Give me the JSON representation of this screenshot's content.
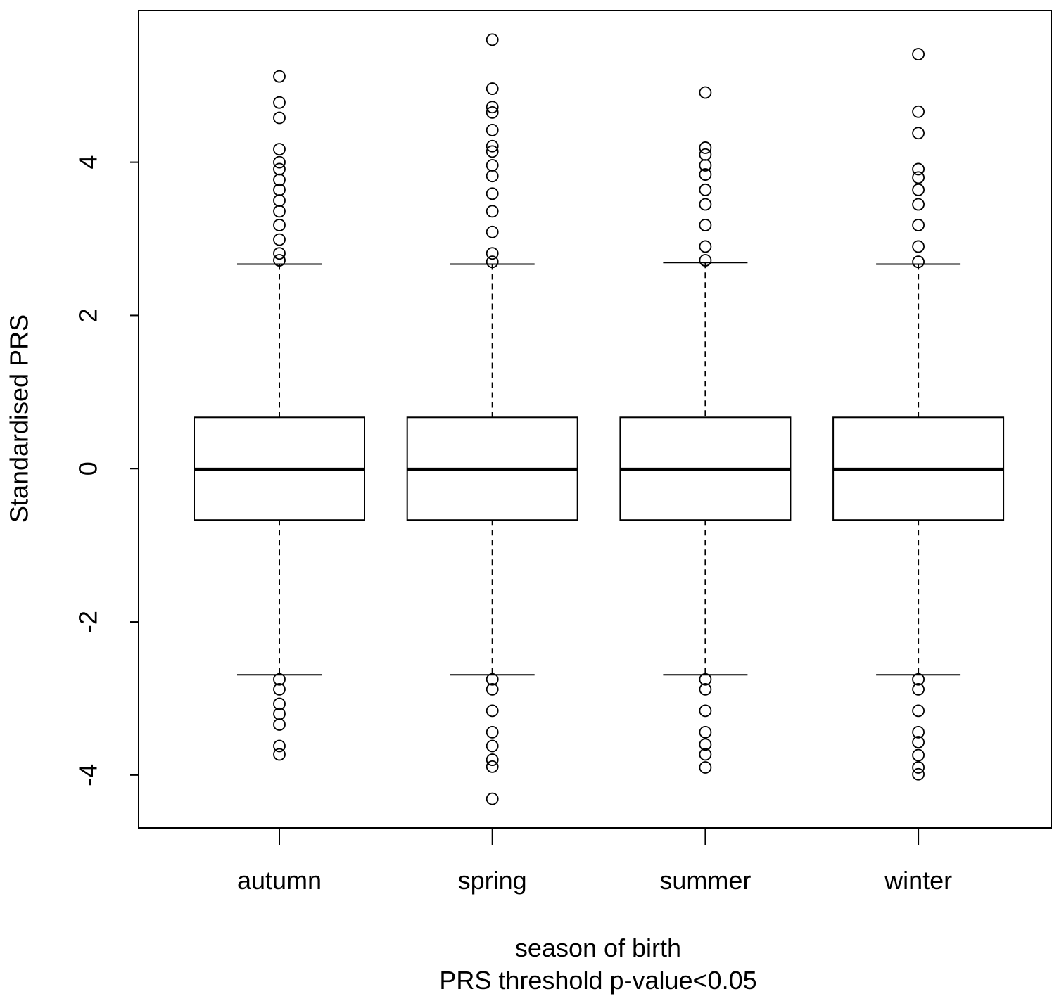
{
  "chart_data": {
    "type": "box",
    "ylabel": "Standardised PRS",
    "xlabel": "season of birth",
    "subtitle": "PRS threshold p-value<0.05",
    "categories": [
      "autumn",
      "spring",
      "summer",
      "winter"
    ],
    "boxes": [
      {
        "whislo": -2.69,
        "q1": -0.67,
        "med": -0.01,
        "q3": 0.67,
        "whishi": 2.67,
        "fliers": [
          5.12,
          4.78,
          4.58,
          4.17,
          4.0,
          3.91,
          3.77,
          3.64,
          3.5,
          3.36,
          3.18,
          2.99,
          2.81,
          2.72,
          -2.75,
          -2.88,
          -3.07,
          -3.2,
          -3.34,
          -3.62,
          -3.73
        ]
      },
      {
        "whislo": -2.69,
        "q1": -0.67,
        "med": -0.01,
        "q3": 0.67,
        "whishi": 2.67,
        "fliers": [
          5.6,
          4.96,
          4.72,
          4.65,
          4.42,
          4.21,
          4.14,
          3.96,
          3.82,
          3.59,
          3.36,
          3.09,
          2.81,
          2.7,
          -2.75,
          -2.88,
          -3.16,
          -3.44,
          -3.62,
          -3.8,
          -3.89,
          -4.31
        ]
      },
      {
        "whislo": -2.69,
        "q1": -0.67,
        "med": -0.01,
        "q3": 0.67,
        "whishi": 2.69,
        "fliers": [
          4.91,
          4.19,
          4.1,
          3.96,
          3.84,
          3.64,
          3.45,
          3.18,
          2.9,
          2.72,
          -2.75,
          -2.88,
          -3.16,
          -3.44,
          -3.6,
          -3.73,
          -3.9
        ]
      },
      {
        "whislo": -2.69,
        "q1": -0.67,
        "med": -0.01,
        "q3": 0.67,
        "whishi": 2.67,
        "fliers": [
          5.41,
          4.66,
          4.38,
          3.91,
          3.8,
          3.64,
          3.45,
          3.18,
          2.9,
          2.7,
          -2.75,
          -2.88,
          -3.16,
          -3.44,
          -3.57,
          -3.74,
          -3.9,
          -3.99
        ]
      }
    ],
    "ylim": [
      -4.69,
      5.98
    ],
    "yticks": [
      -4,
      -2,
      0,
      2,
      4
    ]
  }
}
